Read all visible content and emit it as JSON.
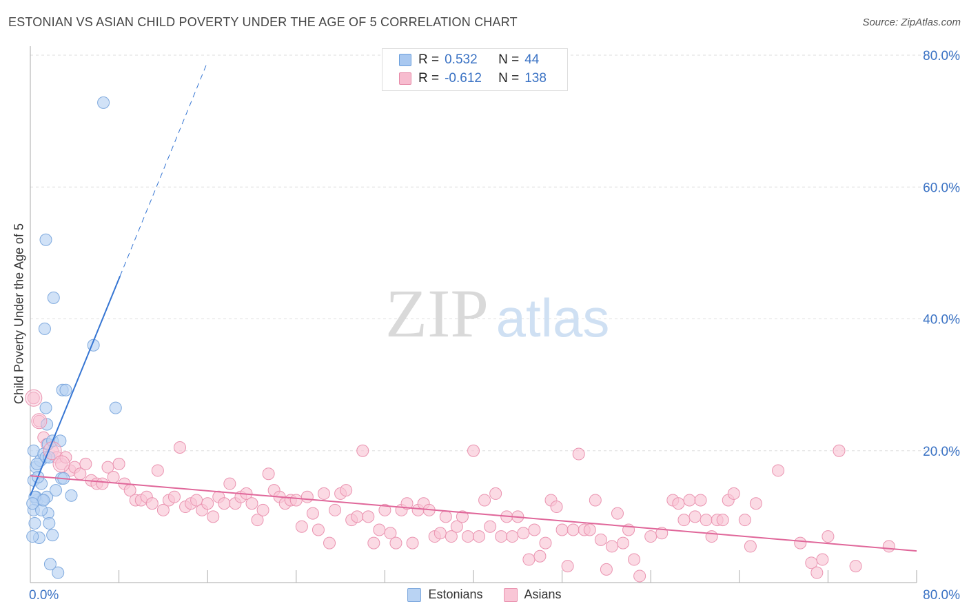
{
  "title": "ESTONIAN VS ASIAN CHILD POVERTY UNDER THE AGE OF 5 CORRELATION CHART",
  "source": "Source: ZipAtlas.com",
  "watermark": {
    "zip": "ZIP",
    "atlas": "atlas"
  },
  "legend_top": [
    {
      "r_label": "R =",
      "r_value": "0.532",
      "n_label": "N =",
      "n_value": "44",
      "color": "#a9c8f0",
      "border": "#6b9fdc"
    },
    {
      "r_label": "R =",
      "r_value": "-0.612",
      "n_label": "N =",
      "n_value": "138",
      "color": "#f7bccf",
      "border": "#e68aa8"
    }
  ],
  "legend_bottom": [
    {
      "label": "Estonians",
      "color": "#b9d3f3",
      "border": "#7ea9de"
    },
    {
      "label": "Asians",
      "color": "#f9c6d6",
      "border": "#ea93b0"
    }
  ],
  "chart_data": {
    "type": "scatter",
    "xlabel": "",
    "ylabel": "Child Poverty Under the Age of 5",
    "xlim": [
      0,
      80
    ],
    "ylim": [
      0,
      80
    ],
    "x_tick_labels": [
      "0.0%",
      "80.0%"
    ],
    "y_tick_labels": [
      "20.0%",
      "40.0%",
      "60.0%",
      "80.0%"
    ],
    "y_ticks": [
      20,
      40,
      60,
      80
    ],
    "grid": true,
    "series": [
      {
        "name": "Estonians",
        "color": "#3575d3",
        "fill": "#b9d3f3",
        "stroke": "#7ea9de",
        "trend": {
          "x0": 0,
          "y0": 13.2,
          "x1": 8.1,
          "y1": 46.5,
          "dash_to_x": 16.0,
          "dash_to_y": 79.0
        },
        "points": [
          [
            0.3,
            20
          ],
          [
            0.5,
            17.5
          ],
          [
            0.3,
            15.5
          ],
          [
            0.6,
            12.5
          ],
          [
            0.3,
            11
          ],
          [
            0.4,
            9
          ],
          [
            0.8,
            6.8
          ],
          [
            0.5,
            13
          ],
          [
            0.9,
            18.5
          ],
          [
            1.2,
            19.5
          ],
          [
            1.4,
            19
          ],
          [
            1.5,
            13
          ],
          [
            1.6,
            10.5
          ],
          [
            1.7,
            9
          ],
          [
            1.8,
            2.8
          ],
          [
            2.0,
            7.2
          ],
          [
            1.1,
            12.5
          ],
          [
            1.0,
            15
          ],
          [
            1.3,
            38.5
          ],
          [
            1.4,
            26.5
          ],
          [
            1.5,
            24
          ],
          [
            1.7,
            19
          ],
          [
            1.6,
            21
          ],
          [
            1.4,
            52
          ],
          [
            2.1,
            43.2
          ],
          [
            2.0,
            21.5
          ],
          [
            2.3,
            14
          ],
          [
            2.5,
            1.5
          ],
          [
            2.7,
            21.5
          ],
          [
            2.8,
            15.8
          ],
          [
            2.9,
            29.2
          ],
          [
            3.0,
            15.8
          ],
          [
            3.2,
            29.2
          ],
          [
            3.7,
            13.2
          ],
          [
            5.7,
            36
          ],
          [
            6.6,
            72.8
          ],
          [
            7.7,
            26.5
          ],
          [
            0.2,
            7
          ],
          [
            0.7,
            16
          ],
          [
            1.0,
            11
          ],
          [
            0.4,
            13
          ],
          [
            1.2,
            12.5
          ],
          [
            0.6,
            18
          ],
          [
            0.2,
            12
          ]
        ]
      },
      {
        "name": "Asians",
        "color": "#e0679a",
        "fill": "#f9c6d6",
        "stroke": "#ea93b0",
        "trend": {
          "x0": 0,
          "y0": 16.2,
          "x1": 80,
          "y1": 4.8
        },
        "points": [
          [
            0.3,
            28
          ],
          [
            0.8,
            24.5
          ],
          [
            1.2,
            22
          ],
          [
            1.5,
            21
          ],
          [
            2.0,
            20
          ],
          [
            2.4,
            19
          ],
          [
            2.8,
            18
          ],
          [
            3.2,
            19
          ],
          [
            3.6,
            17
          ],
          [
            4.0,
            17.5
          ],
          [
            4.5,
            16.5
          ],
          [
            5.0,
            18
          ],
          [
            5.5,
            15.5
          ],
          [
            6.0,
            15
          ],
          [
            6.5,
            15
          ],
          [
            7.0,
            17.5
          ],
          [
            7.5,
            16
          ],
          [
            8.0,
            18
          ],
          [
            8.5,
            15
          ],
          [
            9.0,
            14
          ],
          [
            9.5,
            12.5
          ],
          [
            10.0,
            12.5
          ],
          [
            10.5,
            13
          ],
          [
            11.0,
            12
          ],
          [
            11.5,
            17
          ],
          [
            12.0,
            11
          ],
          [
            12.5,
            12.5
          ],
          [
            13.0,
            13
          ],
          [
            13.5,
            20.5
          ],
          [
            14.0,
            11.5
          ],
          [
            14.5,
            12
          ],
          [
            15.0,
            12.5
          ],
          [
            15.5,
            11
          ],
          [
            16.0,
            12
          ],
          [
            16.5,
            10
          ],
          [
            17.0,
            13
          ],
          [
            17.5,
            12
          ],
          [
            18.0,
            15
          ],
          [
            18.5,
            12
          ],
          [
            19.0,
            13
          ],
          [
            19.5,
            13.5
          ],
          [
            20.0,
            12
          ],
          [
            20.5,
            9.5
          ],
          [
            21.0,
            11
          ],
          [
            21.5,
            16.5
          ],
          [
            22.0,
            14
          ],
          [
            22.5,
            13
          ],
          [
            23.0,
            12
          ],
          [
            23.5,
            12.5
          ],
          [
            24.0,
            12.5
          ],
          [
            24.5,
            8.5
          ],
          [
            25.0,
            13
          ],
          [
            25.5,
            10.5
          ],
          [
            26.0,
            8
          ],
          [
            26.5,
            13.5
          ],
          [
            27.0,
            6
          ],
          [
            27.5,
            11
          ],
          [
            28.0,
            13.5
          ],
          [
            28.5,
            14
          ],
          [
            29.0,
            9.5
          ],
          [
            29.5,
            10
          ],
          [
            30.0,
            20
          ],
          [
            30.5,
            10
          ],
          [
            31.0,
            6
          ],
          [
            31.5,
            8
          ],
          [
            32.0,
            11
          ],
          [
            32.5,
            7.5
          ],
          [
            33.0,
            6
          ],
          [
            33.5,
            11
          ],
          [
            34.0,
            12
          ],
          [
            34.5,
            6
          ],
          [
            35.0,
            11
          ],
          [
            35.5,
            12
          ],
          [
            36.0,
            11
          ],
          [
            36.5,
            7
          ],
          [
            37.0,
            7.5
          ],
          [
            37.5,
            10
          ],
          [
            38.0,
            7
          ],
          [
            38.5,
            8.5
          ],
          [
            39.0,
            10
          ],
          [
            39.5,
            7
          ],
          [
            40.0,
            20
          ],
          [
            40.5,
            7
          ],
          [
            41.0,
            12.5
          ],
          [
            41.5,
            8.5
          ],
          [
            42.0,
            13.5
          ],
          [
            42.5,
            7
          ],
          [
            43.0,
            10
          ],
          [
            43.5,
            7
          ],
          [
            44.0,
            10
          ],
          [
            44.5,
            7.5
          ],
          [
            45.0,
            3.5
          ],
          [
            45.5,
            8
          ],
          [
            46.0,
            4
          ],
          [
            46.5,
            6
          ],
          [
            47.0,
            12.5
          ],
          [
            47.5,
            11.5
          ],
          [
            48.0,
            8
          ],
          [
            48.5,
            2.5
          ],
          [
            49.0,
            8
          ],
          [
            49.5,
            19.5
          ],
          [
            50.0,
            8
          ],
          [
            50.5,
            8
          ],
          [
            51.0,
            12.5
          ],
          [
            51.5,
            6.5
          ],
          [
            52.0,
            2
          ],
          [
            52.5,
            5.5
          ],
          [
            53.0,
            10.5
          ],
          [
            53.5,
            6
          ],
          [
            54.0,
            8
          ],
          [
            54.5,
            3.5
          ],
          [
            55.0,
            1
          ],
          [
            56.0,
            7
          ],
          [
            57.0,
            7.5
          ],
          [
            58.0,
            12.5
          ],
          [
            58.5,
            12
          ],
          [
            59.0,
            9.5
          ],
          [
            59.5,
            12.5
          ],
          [
            60.0,
            10
          ],
          [
            60.5,
            12.5
          ],
          [
            61.0,
            9.5
          ],
          [
            61.5,
            7
          ],
          [
            62.0,
            9.5
          ],
          [
            62.5,
            9.5
          ],
          [
            63.0,
            12.5
          ],
          [
            63.5,
            13.5
          ],
          [
            64.5,
            9.5
          ],
          [
            65.0,
            5.5
          ],
          [
            65.5,
            12
          ],
          [
            67.5,
            17
          ],
          [
            69.5,
            6
          ],
          [
            70.5,
            3
          ],
          [
            71.0,
            1.5
          ],
          [
            71.5,
            3.5
          ],
          [
            72.0,
            7
          ],
          [
            73.0,
            20
          ],
          [
            74.5,
            2.5
          ],
          [
            77.5,
            5.5
          ]
        ]
      }
    ]
  }
}
